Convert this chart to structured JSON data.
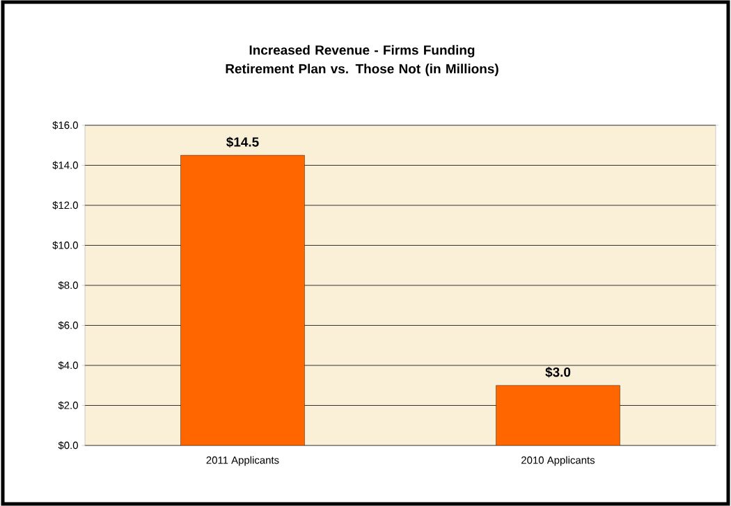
{
  "chart_data": {
    "type": "bar",
    "title": "Increased Revenue - Firms Funding Retirement Plan vs. Those Not (in Millions)",
    "categories": [
      "2011 Applicants",
      "2010 Applicants"
    ],
    "values": [
      14.5,
      3.0
    ],
    "value_labels": [
      "$14.5",
      "$3.0"
    ],
    "color": "#ff6600",
    "ylim": [
      0,
      16
    ],
    "yticks": [
      {
        "value": 0,
        "label": "$0.0"
      },
      {
        "value": 2,
        "label": "$2.0"
      },
      {
        "value": 4,
        "label": "$4.0"
      },
      {
        "value": 6,
        "label": "$6.0"
      },
      {
        "value": 8,
        "label": "$8.0"
      },
      {
        "value": 10,
        "label": "$10.0"
      },
      {
        "value": 12,
        "label": "$12.0"
      },
      {
        "value": 14,
        "label": "$14.0"
      },
      {
        "value": 16,
        "label": "$16.0"
      }
    ],
    "grid": "y"
  }
}
